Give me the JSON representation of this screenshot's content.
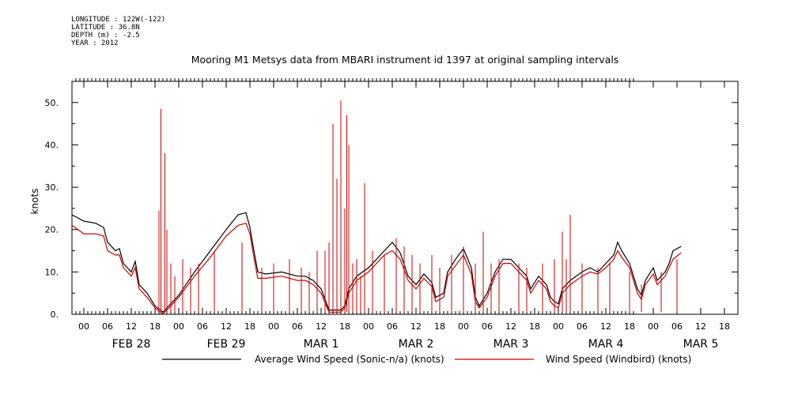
{
  "header": {
    "longitude": "LONGITUDE : 122W(-122)",
    "latitude": "LATITUDE : 36.8N",
    "depth": "DEPTH (m) : -2.5",
    "year": "YEAR : 2012"
  },
  "chart_data": {
    "type": "line",
    "title": "Mooring M1 Metsys data from MBARI instrument id 1397 at original sampling intervals",
    "ylabel": "knots",
    "ylim": [
      0,
      55
    ],
    "yticks": [
      0,
      10,
      20,
      30,
      40,
      50
    ],
    "ytick_labels": [
      "0.",
      "10.",
      "20.",
      "30.",
      "40.",
      "50."
    ],
    "xlim_hours": [
      -4,
      140
    ],
    "hour_ticks": [
      "00",
      "06",
      "12",
      "18",
      "00",
      "06",
      "12",
      "18",
      "00",
      "06",
      "12",
      "18",
      "00",
      "06",
      "12",
      "18",
      "00",
      "06",
      "12",
      "18",
      "00",
      "06",
      "12",
      "18",
      "00",
      "06",
      "12",
      "18"
    ],
    "day_labels": [
      "FEB 28",
      "FEB 29",
      "MAR  1",
      "MAR  2",
      "MAR  3",
      "MAR  4",
      "MAR  5"
    ],
    "grid": false,
    "legend_position": "bottom",
    "series": [
      {
        "name": "Average Wind Speed (Sonic-n/a) (knots)",
        "color": "#000000",
        "points": [
          [
            -3,
            23.5
          ],
          [
            0,
            22
          ],
          [
            3,
            21.5
          ],
          [
            5,
            20.5
          ],
          [
            6,
            17
          ],
          [
            8,
            15
          ],
          [
            9,
            15.5
          ],
          [
            10,
            12
          ],
          [
            12,
            10
          ],
          [
            13,
            12.5
          ],
          [
            14,
            7
          ],
          [
            16,
            5
          ],
          [
            18,
            2
          ],
          [
            20,
            0.5
          ],
          [
            22,
            2.5
          ],
          [
            24,
            4.5
          ],
          [
            28,
            10
          ],
          [
            32,
            15
          ],
          [
            36,
            20
          ],
          [
            39,
            23.5
          ],
          [
            41,
            24
          ],
          [
            42,
            20.5
          ],
          [
            43,
            15
          ],
          [
            44,
            10
          ],
          [
            46,
            9.5
          ],
          [
            50,
            10
          ],
          [
            54,
            9
          ],
          [
            56,
            9
          ],
          [
            58,
            8
          ],
          [
            60,
            6
          ],
          [
            62,
            1
          ],
          [
            65,
            1
          ],
          [
            66,
            2
          ],
          [
            67,
            6
          ],
          [
            69,
            9
          ],
          [
            72,
            11
          ],
          [
            74,
            13
          ],
          [
            76,
            15
          ],
          [
            78,
            17
          ],
          [
            80,
            14.5
          ],
          [
            82,
            9
          ],
          [
            84,
            7
          ],
          [
            86,
            9.5
          ],
          [
            88,
            7.5
          ],
          [
            89,
            4
          ],
          [
            91,
            5
          ],
          [
            92,
            10
          ],
          [
            94,
            13
          ],
          [
            96,
            15.5
          ],
          [
            98,
            11
          ],
          [
            99,
            4
          ],
          [
            100,
            2
          ],
          [
            102,
            5
          ],
          [
            104,
            10
          ],
          [
            106,
            13
          ],
          [
            108,
            13
          ],
          [
            110,
            11
          ],
          [
            112,
            9
          ],
          [
            113,
            6
          ],
          [
            115,
            9
          ],
          [
            117,
            7
          ],
          [
            118,
            4
          ],
          [
            119,
            3
          ],
          [
            120,
            2.5
          ],
          [
            121,
            6
          ],
          [
            123,
            8
          ],
          [
            126,
            10
          ],
          [
            128,
            11
          ],
          [
            130,
            10
          ],
          [
            132,
            12
          ],
          [
            134,
            14
          ],
          [
            135,
            17
          ],
          [
            136,
            15
          ],
          [
            138,
            12
          ],
          [
            139,
            9
          ],
          [
            140,
            6
          ],
          [
            141,
            4.5
          ],
          [
            142,
            8
          ],
          [
            144,
            11
          ],
          [
            145,
            8
          ],
          [
            147,
            10
          ],
          [
            148,
            12
          ],
          [
            149,
            15
          ],
          [
            151,
            16
          ]
        ]
      },
      {
        "name": "Wind Speed (Windbird) (knots)",
        "color": "#cc0000",
        "points": [
          [
            -3,
            21
          ],
          [
            0,
            19
          ],
          [
            3,
            19
          ],
          [
            5,
            18.5
          ],
          [
            6,
            15
          ],
          [
            8,
            14
          ],
          [
            9,
            14
          ],
          [
            10,
            11
          ],
          [
            12,
            9
          ],
          [
            13,
            11
          ],
          [
            14,
            6
          ],
          [
            16,
            4
          ],
          [
            18,
            1.5
          ],
          [
            20,
            0
          ],
          [
            22,
            2
          ],
          [
            24,
            4
          ],
          [
            28,
            9
          ],
          [
            32,
            13.5
          ],
          [
            36,
            18.5
          ],
          [
            39,
            21
          ],
          [
            41,
            21.5
          ],
          [
            42,
            19
          ],
          [
            43,
            13.5
          ],
          [
            44,
            8.5
          ],
          [
            46,
            8.5
          ],
          [
            50,
            9
          ],
          [
            54,
            8
          ],
          [
            56,
            8
          ],
          [
            58,
            7
          ],
          [
            60,
            5
          ],
          [
            62,
            0.5
          ],
          [
            65,
            0.5
          ],
          [
            66,
            1.5
          ],
          [
            67,
            5
          ],
          [
            69,
            8
          ],
          [
            72,
            10
          ],
          [
            74,
            12
          ],
          [
            76,
            14
          ],
          [
            78,
            15
          ],
          [
            80,
            13
          ],
          [
            82,
            8
          ],
          [
            84,
            6
          ],
          [
            86,
            8.5
          ],
          [
            88,
            6.5
          ],
          [
            89,
            3
          ],
          [
            91,
            4
          ],
          [
            92,
            9
          ],
          [
            94,
            11.5
          ],
          [
            96,
            14
          ],
          [
            98,
            9.5
          ],
          [
            99,
            3
          ],
          [
            100,
            1.5
          ],
          [
            102,
            4
          ],
          [
            104,
            9
          ],
          [
            106,
            12
          ],
          [
            108,
            12
          ],
          [
            110,
            10
          ],
          [
            112,
            8
          ],
          [
            113,
            5
          ],
          [
            115,
            8
          ],
          [
            117,
            6
          ],
          [
            118,
            3
          ],
          [
            119,
            2
          ],
          [
            120,
            1.5
          ],
          [
            121,
            5
          ],
          [
            123,
            7
          ],
          [
            126,
            9
          ],
          [
            128,
            10
          ],
          [
            130,
            9.5
          ],
          [
            132,
            11
          ],
          [
            134,
            13
          ],
          [
            135,
            15
          ],
          [
            136,
            13.5
          ],
          [
            138,
            11
          ],
          [
            139,
            8
          ],
          [
            140,
            5
          ],
          [
            141,
            3.5
          ],
          [
            142,
            7
          ],
          [
            144,
            9.5
          ],
          [
            145,
            7
          ],
          [
            147,
            9
          ],
          [
            148,
            11
          ],
          [
            149,
            13
          ],
          [
            151,
            14.5
          ]
        ],
        "spikes": [
          [
            19,
            24.5
          ],
          [
            19.5,
            48.5
          ],
          [
            20.5,
            38
          ],
          [
            21,
            20
          ],
          [
            22,
            12
          ],
          [
            23,
            9
          ],
          [
            25,
            13
          ],
          [
            27,
            11
          ],
          [
            29,
            12
          ],
          [
            33,
            15
          ],
          [
            40,
            17
          ],
          [
            45,
            11
          ],
          [
            48,
            12
          ],
          [
            52,
            13
          ],
          [
            55,
            11
          ],
          [
            57,
            10
          ],
          [
            59,
            15
          ],
          [
            61,
            15
          ],
          [
            62,
            17
          ],
          [
            63,
            45
          ],
          [
            64,
            32
          ],
          [
            65,
            50.5
          ],
          [
            66,
            25
          ],
          [
            66.5,
            47
          ],
          [
            67,
            40
          ],
          [
            68,
            12
          ],
          [
            69,
            13
          ],
          [
            70,
            9
          ],
          [
            71,
            31
          ],
          [
            73,
            15
          ],
          [
            76,
            14
          ],
          [
            79,
            18
          ],
          [
            81,
            16
          ],
          [
            83,
            14
          ],
          [
            85,
            12
          ],
          [
            88,
            14
          ],
          [
            90,
            11
          ],
          [
            93,
            14
          ],
          [
            96,
            16
          ],
          [
            99,
            12
          ],
          [
            101,
            19.5
          ],
          [
            103,
            12
          ],
          [
            105,
            13
          ],
          [
            110,
            12
          ],
          [
            112,
            11
          ],
          [
            116,
            12
          ],
          [
            119,
            13
          ],
          [
            121,
            19.5
          ],
          [
            122,
            13
          ],
          [
            123,
            23.5
          ],
          [
            126,
            12
          ],
          [
            130,
            11
          ],
          [
            133,
            12
          ],
          [
            138,
            10
          ],
          [
            141,
            7
          ],
          [
            146,
            10
          ],
          [
            150,
            13
          ]
        ]
      }
    ]
  }
}
